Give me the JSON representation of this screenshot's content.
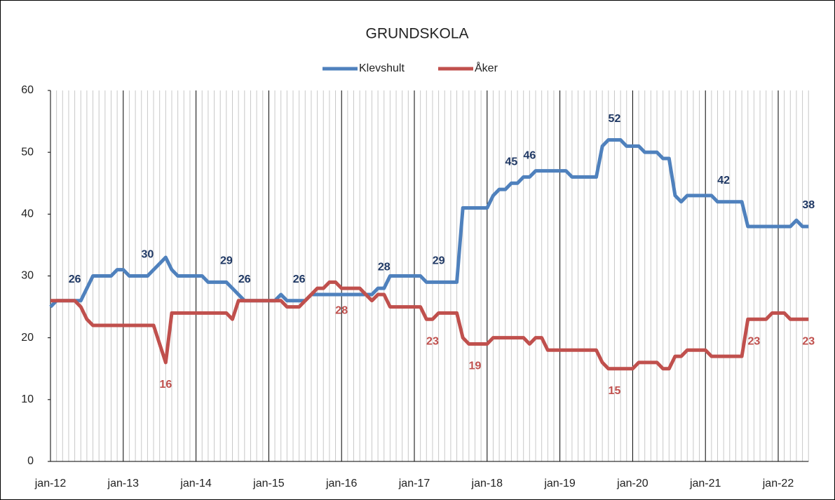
{
  "chart_data": {
    "type": "line",
    "title": "GRUNDSKOLA",
    "categories": [
      "jan-12",
      null,
      null,
      null,
      null,
      null,
      null,
      null,
      null,
      null,
      null,
      null,
      "jan-13",
      null,
      null,
      null,
      null,
      null,
      null,
      null,
      null,
      null,
      null,
      null,
      "jan-14",
      null,
      null,
      null,
      null,
      null,
      null,
      null,
      null,
      null,
      null,
      null,
      "jan-15",
      null,
      null,
      null,
      null,
      null,
      null,
      null,
      null,
      null,
      null,
      null,
      "jan-16",
      null,
      null,
      null,
      null,
      null,
      null,
      null,
      null,
      null,
      null,
      null,
      "jan-17",
      null,
      null,
      null,
      null,
      null,
      null,
      null,
      null,
      null,
      null,
      null,
      "jan-18",
      null,
      null,
      null,
      null,
      null,
      null,
      null,
      null,
      null,
      null,
      null,
      "jan-19",
      null,
      null,
      null,
      null,
      null,
      null,
      null,
      null,
      null,
      null,
      null,
      "jan-20",
      null,
      null,
      null,
      null,
      null,
      null,
      null,
      null,
      null,
      null,
      null,
      "jan-21",
      null,
      null,
      null,
      null,
      null,
      null,
      null,
      null,
      null,
      null,
      null,
      "jan-22",
      null,
      null,
      null,
      null,
      null
    ],
    "series": [
      {
        "name": "Klevshult",
        "color": "#4f81bd",
        "label_color": "#1f3864",
        "label_side": "above",
        "values": [
          25,
          26,
          26,
          26,
          26,
          26,
          28,
          30,
          30,
          30,
          30,
          31,
          31,
          30,
          30,
          30,
          30,
          31,
          32,
          33,
          31,
          30,
          30,
          30,
          30,
          30,
          29,
          29,
          29,
          29,
          28,
          27,
          26,
          26,
          26,
          26,
          26,
          26,
          27,
          26,
          26,
          26,
          26,
          27,
          27,
          27,
          27,
          27,
          27,
          27,
          27,
          27,
          27,
          27,
          28,
          28,
          30,
          30,
          30,
          30,
          30,
          30,
          29,
          29,
          29,
          29,
          29,
          29,
          41,
          41,
          41,
          41,
          41,
          43,
          44,
          44,
          45,
          45,
          46,
          46,
          47,
          47,
          47,
          47,
          47,
          47,
          46,
          46,
          46,
          46,
          46,
          51,
          52,
          52,
          52,
          51,
          51,
          51,
          50,
          50,
          50,
          49,
          49,
          43,
          42,
          43,
          43,
          43,
          43,
          43,
          42,
          42,
          42,
          42,
          42,
          38,
          38,
          38,
          38,
          38,
          38,
          38,
          38,
          39,
          38,
          38
        ],
        "value_labels": [
          null,
          null,
          null,
          null,
          "26",
          null,
          null,
          null,
          null,
          null,
          null,
          null,
          null,
          null,
          null,
          null,
          "30",
          null,
          null,
          null,
          null,
          null,
          null,
          null,
          null,
          null,
          null,
          null,
          null,
          "29",
          null,
          null,
          "26",
          null,
          null,
          null,
          null,
          null,
          null,
          null,
          null,
          "26",
          null,
          null,
          null,
          null,
          null,
          null,
          null,
          null,
          null,
          null,
          null,
          null,
          null,
          "28",
          null,
          null,
          null,
          null,
          null,
          null,
          null,
          null,
          "29",
          null,
          null,
          null,
          null,
          null,
          null,
          null,
          null,
          null,
          null,
          null,
          "45",
          null,
          null,
          "46",
          null,
          null,
          null,
          null,
          null,
          null,
          null,
          null,
          null,
          null,
          null,
          null,
          null,
          "52",
          null,
          null,
          null,
          null,
          null,
          null,
          null,
          null,
          null,
          null,
          null,
          null,
          null,
          null,
          null,
          null,
          null,
          "42",
          null,
          null,
          null,
          null,
          null,
          null,
          null,
          null,
          null,
          null,
          null,
          null,
          null,
          "38"
        ]
      },
      {
        "name": "Åker",
        "color": "#c0504d",
        "label_color": "#c0504d",
        "label_side": "below",
        "values": [
          26,
          26,
          26,
          26,
          26,
          25,
          23,
          22,
          22,
          22,
          22,
          22,
          22,
          22,
          22,
          22,
          22,
          22,
          19,
          16,
          24,
          24,
          24,
          24,
          24,
          24,
          24,
          24,
          24,
          24,
          23,
          26,
          26,
          26,
          26,
          26,
          26,
          26,
          26,
          25,
          25,
          25,
          26,
          27,
          28,
          28,
          29,
          29,
          28,
          28,
          28,
          28,
          27,
          26,
          27,
          27,
          25,
          25,
          25,
          25,
          25,
          25,
          23,
          23,
          24,
          24,
          24,
          24,
          20,
          19,
          19,
          19,
          19,
          20,
          20,
          20,
          20,
          20,
          20,
          19,
          20,
          20,
          18,
          18,
          18,
          18,
          18,
          18,
          18,
          18,
          18,
          16,
          15,
          15,
          15,
          15,
          15,
          16,
          16,
          16,
          16,
          15,
          15,
          17,
          17,
          18,
          18,
          18,
          18,
          17,
          17,
          17,
          17,
          17,
          17,
          23,
          23,
          23,
          23,
          24,
          24,
          24,
          23,
          23,
          23,
          23
        ],
        "value_labels": [
          null,
          null,
          null,
          null,
          null,
          null,
          null,
          null,
          null,
          null,
          null,
          null,
          null,
          null,
          null,
          null,
          null,
          null,
          null,
          "16",
          null,
          null,
          null,
          null,
          null,
          null,
          null,
          null,
          null,
          null,
          null,
          null,
          null,
          null,
          null,
          null,
          null,
          null,
          null,
          null,
          null,
          null,
          null,
          null,
          null,
          null,
          null,
          null,
          "28",
          null,
          null,
          null,
          null,
          null,
          null,
          null,
          null,
          null,
          null,
          null,
          null,
          null,
          null,
          "23",
          null,
          null,
          null,
          null,
          null,
          null,
          "19",
          null,
          null,
          null,
          null,
          null,
          null,
          null,
          null,
          null,
          null,
          null,
          null,
          null,
          null,
          null,
          null,
          null,
          null,
          null,
          null,
          null,
          null,
          "15",
          null,
          null,
          null,
          null,
          null,
          null,
          null,
          null,
          null,
          null,
          null,
          null,
          null,
          null,
          null,
          null,
          null,
          null,
          null,
          null,
          null,
          null,
          "23",
          null,
          null,
          null,
          null,
          null,
          null,
          null,
          null,
          "23"
        ]
      }
    ],
    "ylim": [
      0,
      60
    ],
    "yticks": [
      0,
      10,
      20,
      30,
      40,
      50,
      60
    ],
    "grid": true,
    "legend": "top"
  }
}
